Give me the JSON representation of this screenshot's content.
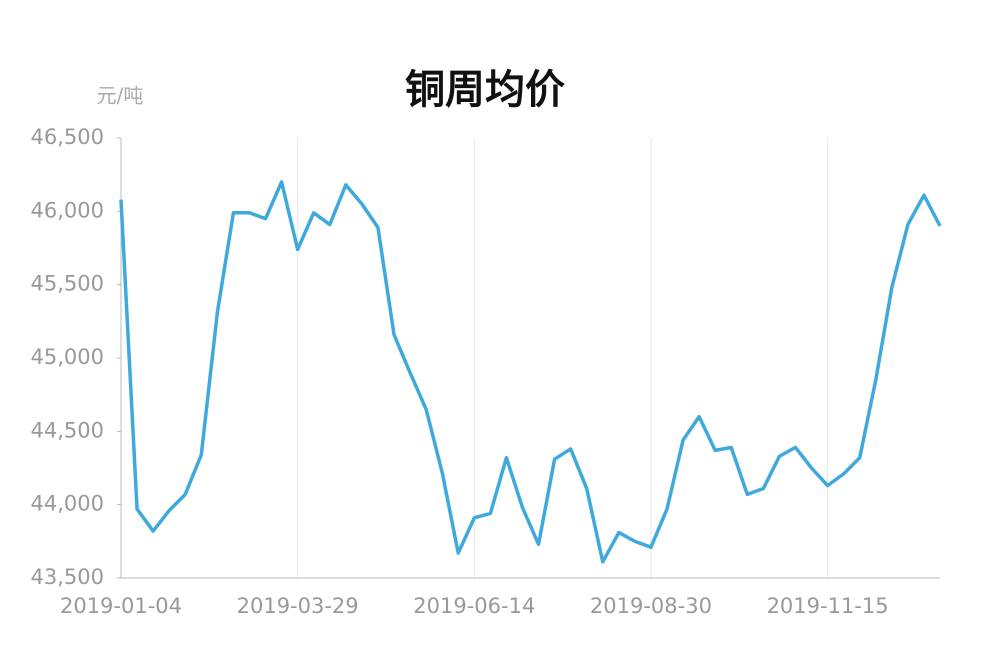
{
  "chart_data": {
    "type": "line",
    "title": "铜周均价",
    "y_unit": "元/吨",
    "categories": [
      "2019-01-04",
      null,
      null,
      null,
      null,
      null,
      null,
      null,
      null,
      null,
      null,
      "2019-03-29",
      null,
      null,
      null,
      null,
      null,
      null,
      null,
      null,
      null,
      null,
      "2019-06-14",
      null,
      null,
      null,
      null,
      null,
      null,
      null,
      null,
      null,
      null,
      "2019-08-30",
      null,
      null,
      null,
      null,
      null,
      null,
      null,
      null,
      null,
      null,
      "2019-11-15",
      null,
      null,
      null,
      null,
      null,
      null,
      null
    ],
    "series": [
      {
        "name": "铜周均价",
        "color": "#3fa9dc",
        "values": [
          46080,
          43970,
          43820,
          43960,
          44070,
          44340,
          45310,
          45990,
          45990,
          45950,
          46200,
          45740,
          45990,
          45910,
          46180,
          46050,
          45890,
          45160,
          44900,
          44650,
          44220,
          43670,
          43910,
          43940,
          44320,
          43980,
          43730,
          44310,
          44380,
          44110,
          43610,
          43810,
          43750,
          43710,
          43970,
          44440,
          44600,
          44370,
          44390,
          44070,
          44110,
          44330,
          44390,
          44250,
          44130,
          44210,
          44320,
          44850,
          45480,
          45910,
          46110,
          45900
        ]
      }
    ],
    "ylim": [
      43500,
      46500
    ],
    "yticks": [
      {
        "value": 43500,
        "label": "43,500"
      },
      {
        "value": 44000,
        "label": "44,000"
      },
      {
        "value": 44500,
        "label": "44,500"
      },
      {
        "value": 45000,
        "label": "45,000"
      },
      {
        "value": 45500,
        "label": "45,500"
      },
      {
        "value": 46000,
        "label": "46,000"
      },
      {
        "value": 46500,
        "label": "46,500"
      }
    ],
    "grid": true
  }
}
